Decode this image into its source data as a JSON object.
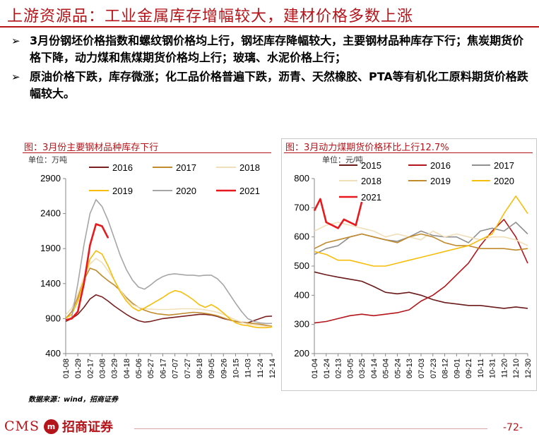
{
  "header": {
    "title": "上游资源品：工业金属库存增幅较大，建材价格多数上涨"
  },
  "bullets": [
    "3月份钢坯价格指数和螺纹钢价格均上行，钢坯库存降幅较大，主要钢材品种库存下行；焦炭期货价格下降，动力煤和焦煤期货价格均上行；玻璃、水泥价格上行；",
    "原油价格下跌，库存微涨；化工品价格普遍下跌，沥青、天然橡胶、PTA等有机化工原料期货价格跌幅较大。"
  ],
  "bullet_marker": "➢",
  "source_note": "数据来源：wind，招商证券",
  "footer": {
    "brand": "CMS",
    "brand_mark": "m",
    "company_cn": "招商证券",
    "page_number": "-72-"
  },
  "colors": {
    "accent": "#b4151a"
  },
  "chart_data": [
    {
      "type": "line",
      "title": "图：3月份主要钢材品种库存下行",
      "unit_label": "单位：万吨",
      "ylim": [
        400,
        2900
      ],
      "yticks": [
        400,
        900,
        1400,
        1900,
        2400,
        2900
      ],
      "x_tick_labels": [
        "01-08",
        "01-29",
        "02-17",
        "03-08",
        "03-29",
        "04-18",
        "05-06",
        "05-27",
        "06-17",
        "07-07",
        "07-27",
        "08-18",
        "09-05",
        "09-26",
        "10-15",
        "11-03",
        "11-24",
        "12-14"
      ],
      "x_index_range": [
        0,
        17
      ],
      "series": [
        {
          "name": "2016",
          "color": "#7a1f1f",
          "x": [
            0,
            0.5,
            1,
            1.5,
            2,
            2.5,
            3,
            3.5,
            4,
            4.5,
            5,
            5.5,
            6,
            6.5,
            7,
            7.5,
            8,
            8.5,
            9,
            9.5,
            10,
            10.5,
            11,
            11.5,
            12,
            12.5,
            13,
            13.5,
            14,
            14.5,
            15,
            15.5,
            16,
            16.5,
            17
          ],
          "y": [
            860,
            900,
            960,
            1060,
            1180,
            1240,
            1210,
            1150,
            1080,
            1020,
            960,
            910,
            870,
            850,
            860,
            880,
            900,
            910,
            920,
            930,
            940,
            950,
            960,
            960,
            950,
            930,
            900,
            880,
            860,
            850,
            840,
            870,
            900,
            930,
            935
          ]
        },
        {
          "name": "2017",
          "color": "#c08a2d",
          "x": [
            0,
            0.5,
            1,
            1.5,
            2,
            2.5,
            3,
            3.5,
            4,
            4.5,
            5,
            5.5,
            6,
            6.5,
            7,
            7.5,
            8,
            8.5,
            9,
            9.5,
            10,
            10.5,
            11,
            11.5,
            12,
            12.5,
            13,
            13.5,
            14,
            14.5,
            15,
            15.5,
            16,
            16.5,
            17
          ],
          "y": [
            900,
            1000,
            1200,
            1450,
            1620,
            1590,
            1510,
            1440,
            1380,
            1300,
            1200,
            1120,
            1060,
            1020,
            990,
            970,
            960,
            950,
            960,
            970,
            980,
            990,
            985,
            975,
            960,
            940,
            910,
            880,
            860,
            845,
            840,
            830,
            820,
            805,
            790
          ]
        },
        {
          "name": "2018",
          "color": "#f0dfb8",
          "x": [
            0,
            0.5,
            1,
            1.5,
            2,
            2.5,
            3,
            3.5,
            4,
            4.5,
            5,
            5.5,
            6,
            6.5,
            7,
            7.5,
            8,
            8.5,
            9,
            9.5,
            10,
            10.5,
            11,
            11.5,
            12,
            12.5,
            13,
            13.5,
            14,
            14.5,
            15,
            15.5,
            16,
            16.5,
            17
          ],
          "y": [
            950,
            1050,
            1250,
            1500,
            1680,
            1760,
            1700,
            1580,
            1450,
            1300,
            1180,
            1100,
            1060,
            1040,
            1035,
            1030,
            1030,
            1030,
            1035,
            1040,
            1040,
            1040,
            1035,
            1025,
            1010,
            990,
            960,
            920,
            880,
            850,
            820,
            810,
            800,
            790,
            780
          ]
        },
        {
          "name": "2019",
          "color": "#f7bd0a",
          "x": [
            0,
            0.5,
            1,
            1.5,
            2,
            2.5,
            3,
            3.5,
            4,
            4.5,
            5,
            5.5,
            6,
            6.5,
            7,
            7.5,
            8,
            8.5,
            9,
            9.5,
            10,
            10.5,
            11,
            11.5,
            12,
            12.5,
            13,
            13.5,
            14,
            14.5,
            15,
            15.5,
            16,
            16.5,
            17
          ],
          "y": [
            900,
            960,
            1150,
            1450,
            1750,
            1870,
            1820,
            1650,
            1450,
            1280,
            1150,
            1060,
            1010,
            1050,
            1100,
            1150,
            1200,
            1260,
            1300,
            1280,
            1230,
            1170,
            1100,
            1060,
            1100,
            1050,
            980,
            900,
            840,
            810,
            800,
            780,
            770,
            770,
            780
          ]
        },
        {
          "name": "2020",
          "color": "#a6a6a6",
          "x": [
            0,
            0.5,
            1,
            1.5,
            2,
            2.5,
            3,
            3.5,
            4,
            4.5,
            5,
            5.5,
            6,
            6.5,
            7,
            7.5,
            8,
            8.5,
            9,
            9.5,
            10,
            10.5,
            11,
            11.5,
            12,
            12.5,
            13,
            13.5,
            14,
            14.5,
            15,
            15.5,
            16,
            16.5,
            17
          ],
          "y": [
            870,
            920,
            1400,
            1950,
            2400,
            2600,
            2500,
            2300,
            2050,
            1800,
            1600,
            1450,
            1350,
            1320,
            1380,
            1450,
            1500,
            1530,
            1540,
            1530,
            1520,
            1520,
            1510,
            1520,
            1520,
            1470,
            1380,
            1250,
            1120,
            1000,
            900,
            860,
            840,
            830,
            830
          ]
        },
        {
          "name": "2021",
          "color": "#e8191c",
          "x": [
            0,
            0.5,
            1,
            1.5,
            2,
            2.5,
            3,
            3.5
          ],
          "y": [
            880,
            900,
            1000,
            1400,
            1950,
            2250,
            2220,
            2050
          ]
        }
      ]
    },
    {
      "type": "line",
      "title": "图：3月动力煤期货价格环比上行12.7%",
      "unit_label": "单位：元/吨",
      "ylim": [
        200,
        800
      ],
      "yticks": [
        200,
        300,
        400,
        500,
        600,
        700,
        800
      ],
      "x_tick_labels": [
        "01-04",
        "01-24",
        "02-13",
        "03-05",
        "03-25",
        "04-14",
        "05-04",
        "05-24",
        "06-13",
        "07-03",
        "07-23",
        "08-12",
        "09-01",
        "09-21",
        "10-11",
        "10-31",
        "11-20",
        "12-10",
        "12-30"
      ],
      "x_index_range": [
        0,
        18
      ],
      "series": [
        {
          "name": "2015",
          "color": "#6b1a1a",
          "x": [
            0,
            1,
            2,
            3,
            4,
            5,
            6,
            7,
            8,
            9,
            10,
            11,
            12,
            13,
            14,
            15,
            16,
            17,
            18
          ],
          "y": [
            480,
            470,
            462,
            455,
            448,
            430,
            410,
            405,
            410,
            400,
            385,
            375,
            370,
            365,
            365,
            360,
            355,
            360,
            355
          ]
        },
        {
          "name": "2016",
          "color": "#b4151a",
          "x": [
            0,
            1,
            2,
            3,
            4,
            5,
            6,
            7,
            8,
            9,
            10,
            11,
            12,
            13,
            14,
            15,
            16,
            17,
            18
          ],
          "y": [
            305,
            310,
            320,
            330,
            335,
            330,
            335,
            340,
            350,
            380,
            400,
            430,
            470,
            510,
            570,
            620,
            660,
            600,
            510
          ]
        },
        {
          "name": "2017",
          "color": "#909090",
          "x": [
            0,
            1,
            2,
            3,
            4,
            5,
            6,
            7,
            8,
            9,
            10,
            11,
            12,
            13,
            14,
            15,
            16,
            17,
            18
          ],
          "y": [
            540,
            560,
            570,
            600,
            610,
            600,
            590,
            585,
            600,
            620,
            605,
            600,
            600,
            580,
            620,
            630,
            620,
            650,
            610
          ]
        },
        {
          "name": "2018",
          "color": "#f0dfb8",
          "x": [
            0,
            1,
            2,
            3,
            4,
            5,
            6,
            7,
            8,
            9,
            10,
            11,
            12,
            13,
            14,
            15,
            16,
            17,
            18
          ],
          "y": [
            620,
            640,
            650,
            640,
            630,
            620,
            600,
            610,
            600,
            590,
            620,
            600,
            610,
            600,
            590,
            600,
            600,
            590,
            570
          ]
        },
        {
          "name": "2019",
          "color": "#c08a2d",
          "x": [
            0,
            1,
            2,
            3,
            4,
            5,
            6,
            7,
            8,
            9,
            10,
            11,
            12,
            13,
            14,
            15,
            16,
            17,
            18
          ],
          "y": [
            560,
            580,
            590,
            600,
            610,
            600,
            590,
            580,
            600,
            610,
            600,
            580,
            570,
            570,
            560,
            560,
            560,
            555,
            560
          ]
        },
        {
          "name": "2020",
          "color": "#f7bd0a",
          "x": [
            0,
            1,
            2,
            3,
            4,
            5,
            6,
            7,
            8,
            9,
            10,
            11,
            12,
            13,
            14,
            15,
            16,
            17,
            18
          ],
          "y": [
            550,
            540,
            520,
            520,
            510,
            500,
            500,
            510,
            520,
            530,
            540,
            550,
            560,
            570,
            590,
            610,
            680,
            740,
            680
          ]
        },
        {
          "name": "2021",
          "color": "#e8191c",
          "x": [
            0,
            0.5,
            1,
            1.5,
            2,
            2.5,
            3,
            3.5,
            4
          ],
          "y": [
            690,
            730,
            650,
            640,
            630,
            660,
            650,
            640,
            720
          ]
        }
      ]
    }
  ]
}
